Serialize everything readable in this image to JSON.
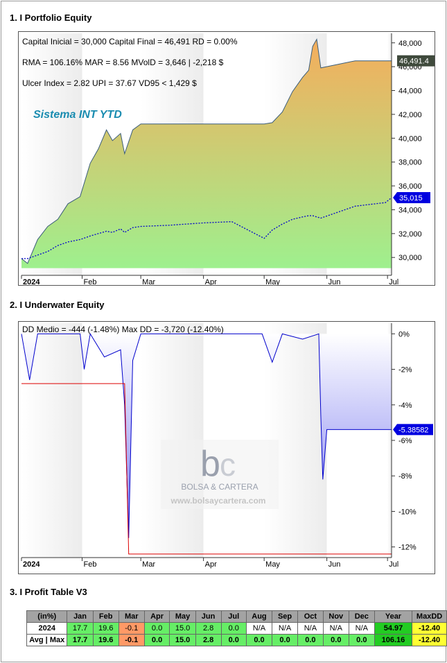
{
  "sections": {
    "s1": "1. I Portfolio Equity",
    "s2": "2. I Underwater Equity",
    "s3": "3. I Profit Table V3"
  },
  "equity": {
    "stats_line1": "Capital Inicial = 30,000  Capital Final = 46,491   RD = 0.00%",
    "stats_line2": "RMA = 106.16%   MAR = 8.56   MVolD = 3,646 | -2,218 $",
    "stats_line3": "Ulcer Index = 2.82   UPI = 37.67   VD95 < 1,429 $",
    "system_label": "Sistema INT YTD",
    "last_value_label": "46,491.4",
    "bench_value_label": "35,015",
    "y_ticks": [
      "30,000",
      "32,000",
      "34,000",
      "36,000",
      "38,000",
      "40,000",
      "42,000",
      "44,000",
      "46,000",
      "48,000"
    ],
    "x_ticks": [
      "2024",
      "Feb",
      "Mar",
      "Apr",
      "May",
      "Jun",
      "Jul"
    ]
  },
  "underwater": {
    "stats": "DD Medio = -444 (-1.48%)       Max DD = -3,720 (-12.40%)",
    "last_value_label": "-5.38582",
    "y_ticks": [
      "0%",
      "-2%",
      "-4%",
      "-6%",
      "-8%",
      "-10%",
      "-12%"
    ],
    "x_ticks": [
      "2024",
      "Feb",
      "Mar",
      "Apr",
      "May",
      "Jun",
      "Jul"
    ],
    "watermark_name": "BOLSA & CARTERA",
    "watermark_url": "www.bolsaycartera.com"
  },
  "colors": {
    "equity_top": "#f5ad5c",
    "equity_bottom": "#9ef08e",
    "benchmark": "#0000cc",
    "dd_line": "#0000cc",
    "maxdd_line": "#dd0000",
    "label_blue": "#0000e0",
    "label_green": "#3f4a3c"
  },
  "chart_data": [
    {
      "type": "area",
      "title": "",
      "x": [
        "2024-01-02",
        "2024-01-05",
        "2024-01-10",
        "2024-01-15",
        "2024-01-20",
        "2024-01-25",
        "2024-01-31",
        "2024-02-05",
        "2024-02-09",
        "2024-02-13",
        "2024-02-16",
        "2024-02-20",
        "2024-02-22",
        "2024-02-26",
        "2024-03-01",
        "2024-03-15",
        "2024-04-01",
        "2024-04-15",
        "2024-05-01",
        "2024-05-05",
        "2024-05-10",
        "2024-05-15",
        "2024-05-20",
        "2024-05-23",
        "2024-05-25",
        "2024-05-27",
        "2024-05-29",
        "2024-06-15",
        "2024-06-30",
        "2024-07-03"
      ],
      "series": [
        {
          "values": [
            29900,
            29500,
            31500,
            32600,
            33200,
            34500,
            35100,
            37900,
            39100,
            40700,
            39800,
            40400,
            38700,
            40700,
            41200,
            41200,
            41200,
            41200,
            41200,
            41300,
            42200,
            43900,
            45100,
            45700,
            47700,
            48300,
            45900,
            46491,
            46491,
            46491
          ]
        },
        {
          "values": [
            29900,
            29900,
            30200,
            30500,
            31000,
            31300,
            31500,
            31800,
            32000,
            32200,
            32100,
            32400,
            32100,
            32500,
            32600,
            32700,
            32900,
            33000,
            31600,
            32300,
            32800,
            33200,
            33400,
            33500,
            33500,
            33400,
            33300,
            34300,
            34600,
            35015
          ]
        }
      ],
      "ylim": [
        28500,
        48800
      ],
      "y_unit": "$"
    },
    {
      "type": "area",
      "title": "",
      "x": [
        "2024-01-02",
        "2024-01-06",
        "2024-01-10",
        "2024-01-31",
        "2024-02-02",
        "2024-02-05",
        "2024-02-12",
        "2024-02-20",
        "2024-02-22",
        "2024-02-24",
        "2024-02-26",
        "2024-03-01",
        "2024-04-30",
        "2024-05-05",
        "2024-05-10",
        "2024-05-20",
        "2024-05-28",
        "2024-05-29",
        "2024-05-30",
        "2024-06-01",
        "2024-06-15",
        "2024-07-03"
      ],
      "series": [
        {
          "values": [
            0,
            -2.6,
            0,
            0,
            -2.0,
            0,
            -1.3,
            -0.9,
            -4.0,
            -11.5,
            -1.5,
            0,
            0,
            -1.6,
            0,
            -0.3,
            0,
            -4.6,
            -8.2,
            -5.39,
            -5.39,
            -5.39
          ]
        },
        {
          "values": [
            -2.8,
            -2.8,
            -2.8,
            -2.8,
            -2.8,
            -2.8,
            -2.8,
            -2.8,
            -2.8,
            -12.4,
            -12.4,
            -12.4,
            -12.4,
            -12.4,
            -12.4,
            -12.4,
            -12.4,
            -12.4,
            -12.4,
            -12.4,
            -12.4,
            -12.4
          ]
        }
      ],
      "ylim": [
        -12.6,
        0.6
      ],
      "y_unit": "%"
    },
    {
      "type": "table",
      "headers": [
        "(in%)",
        "Jan",
        "Feb",
        "Mar",
        "Apr",
        "May",
        "Jun",
        "Jul",
        "Aug",
        "Sep",
        "Oct",
        "Nov",
        "Dec",
        "Year",
        "MaxDD"
      ],
      "rows": [
        [
          "2024",
          "17.7",
          "19.6",
          "-0.1",
          "0.0",
          "15.0",
          "2.8",
          "0.0",
          "N/A",
          "N/A",
          "N/A",
          "N/A",
          "N/A",
          "54.97",
          "-12.40"
        ],
        [
          "Avg | Max",
          "17.7",
          "19.6",
          "-0.1",
          "0.0",
          "15.0",
          "2.8",
          "0.0",
          "0.0",
          "0.0",
          "0.0",
          "0.0",
          "0.0",
          "106.16",
          "-12.40"
        ]
      ]
    }
  ]
}
